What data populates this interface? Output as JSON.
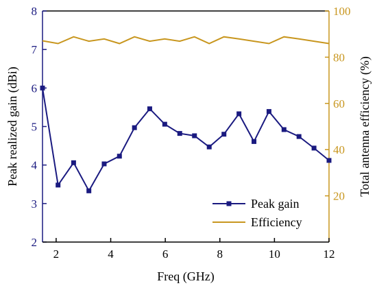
{
  "chart_data": {
    "type": "line",
    "title": "",
    "xlabel": "Freq (GHz)",
    "ylabel_left": "Peak realized gain (dBi)",
    "ylabel_right": "Total antenna efficiency (%)",
    "xlim": [
      1.5,
      12
    ],
    "ylim_left": [
      2,
      8
    ],
    "ylim_right": [
      0,
      100
    ],
    "x_ticks": [
      2,
      4,
      6,
      8,
      10,
      12
    ],
    "y_ticks_left": [
      2,
      3,
      4,
      5,
      6,
      7,
      8
    ],
    "y_ticks_right": [
      20,
      40,
      60,
      80,
      100
    ],
    "grid": false,
    "legend_position": "bottom-right",
    "series": [
      {
        "name": "Peak gain",
        "axis": "left",
        "color": "#1a1a80",
        "marker": "square",
        "x": [
          1.5,
          2.07,
          2.64,
          3.2,
          3.76,
          4.32,
          4.87,
          5.43,
          5.98,
          6.53,
          7.07,
          7.61,
          8.15,
          8.7,
          9.25,
          9.8,
          10.35,
          10.9,
          11.45,
          12.0
        ],
        "y": [
          6.0,
          3.48,
          4.06,
          3.33,
          4.03,
          4.23,
          4.97,
          5.46,
          5.06,
          4.82,
          4.76,
          4.47,
          4.8,
          5.33,
          4.61,
          5.39,
          4.92,
          4.74,
          4.44,
          4.12
        ]
      },
      {
        "name": "Efficiency",
        "axis": "right",
        "color": "#c8961e",
        "marker": "none",
        "x": [
          1.5,
          2.07,
          2.64,
          3.2,
          3.76,
          4.32,
          4.87,
          5.43,
          5.98,
          6.53,
          7.07,
          7.61,
          8.15,
          8.7,
          9.25,
          9.8,
          10.35,
          10.9,
          11.45,
          12.0
        ],
        "y": [
          87.1,
          85.9,
          88.8,
          86.9,
          87.9,
          85.9,
          88.8,
          86.9,
          87.9,
          86.9,
          88.8,
          85.9,
          88.8,
          87.9,
          86.9,
          85.9,
          88.8,
          87.9,
          86.9,
          85.9
        ]
      }
    ]
  },
  "colors": {
    "axis_left": "#1a1a80",
    "axis_right": "#c8961e",
    "axis_bottom": "#000000"
  }
}
